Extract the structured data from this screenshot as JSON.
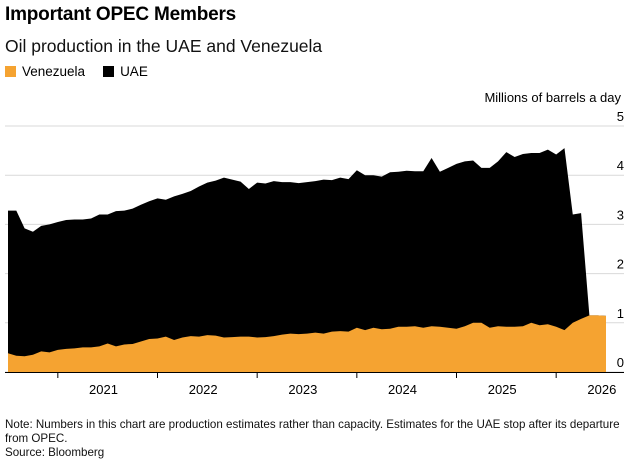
{
  "header": {
    "title": "Important OPEC Members",
    "subtitle": "Oil production in the UAE and Venezuela"
  },
  "legend": [
    {
      "label": "Venezuela",
      "color": "#f5a331"
    },
    {
      "label": "UAE",
      "color": "#000000"
    }
  ],
  "footer": {
    "note": "Note: Numbers in this chart are production estimates rather than capacity. Estimates for the UAE stop after its departure from OPEC.",
    "source": "Source: Bloomberg"
  },
  "chart_data": {
    "type": "area",
    "stacked": true,
    "ylabel": "Millions of barrels a day",
    "ylim": [
      0,
      5
    ],
    "yticks": [
      0,
      1,
      2,
      3,
      4,
      5
    ],
    "x_tick_labels": [
      "2021",
      "2022",
      "2023",
      "2024",
      "2025",
      "2026"
    ],
    "x_start": "2020-07",
    "grid": true,
    "x": [
      "2020-07",
      "2020-08",
      "2020-09",
      "2020-10",
      "2020-11",
      "2020-12",
      "2021-01",
      "2021-02",
      "2021-03",
      "2021-04",
      "2021-05",
      "2021-06",
      "2021-07",
      "2021-08",
      "2021-09",
      "2021-10",
      "2021-11",
      "2021-12",
      "2022-01",
      "2022-02",
      "2022-03",
      "2022-04",
      "2022-05",
      "2022-06",
      "2022-07",
      "2022-08",
      "2022-09",
      "2022-10",
      "2022-11",
      "2022-12",
      "2023-01",
      "2023-02",
      "2023-03",
      "2023-04",
      "2023-05",
      "2023-06",
      "2023-07",
      "2023-08",
      "2023-09",
      "2023-10",
      "2023-11",
      "2023-12",
      "2024-01",
      "2024-02",
      "2024-03",
      "2024-04",
      "2024-05",
      "2024-06",
      "2024-07",
      "2024-08",
      "2024-09",
      "2024-10",
      "2024-11",
      "2024-12",
      "2025-01",
      "2025-02",
      "2025-03",
      "2025-04",
      "2025-05",
      "2025-06",
      "2025-07",
      "2025-08",
      "2025-09",
      "2025-10",
      "2025-11",
      "2025-12",
      "2026-01",
      "2026-02",
      "2026-03",
      "2026-04",
      "2026-05",
      "2026-06",
      "2026-07"
    ],
    "series": [
      {
        "name": "Venezuela",
        "color": "#f5a331",
        "values": [
          0.38,
          0.33,
          0.32,
          0.35,
          0.42,
          0.4,
          0.45,
          0.47,
          0.48,
          0.5,
          0.5,
          0.52,
          0.58,
          0.52,
          0.56,
          0.57,
          0.62,
          0.67,
          0.68,
          0.72,
          0.65,
          0.7,
          0.73,
          0.72,
          0.75,
          0.74,
          0.7,
          0.71,
          0.72,
          0.72,
          0.7,
          0.71,
          0.73,
          0.76,
          0.78,
          0.77,
          0.78,
          0.8,
          0.78,
          0.82,
          0.83,
          0.82,
          0.9,
          0.85,
          0.9,
          0.87,
          0.88,
          0.92,
          0.92,
          0.93,
          0.9,
          0.93,
          0.92,
          0.9,
          0.88,
          0.93,
          1.0,
          1.0,
          0.9,
          0.93,
          0.92,
          0.92,
          0.93,
          1.0,
          0.95,
          0.97,
          0.92,
          0.85,
          1.0,
          1.08,
          1.15,
          1.15,
          1.14
        ]
      },
      {
        "name": "UAE",
        "color": "#000000",
        "values": [
          2.9,
          2.95,
          2.6,
          2.5,
          2.55,
          2.6,
          2.6,
          2.62,
          2.62,
          2.6,
          2.62,
          2.68,
          2.62,
          2.75,
          2.72,
          2.75,
          2.78,
          2.8,
          2.85,
          2.78,
          2.92,
          2.92,
          2.95,
          3.05,
          3.1,
          3.15,
          3.25,
          3.2,
          3.15,
          3.0,
          3.15,
          3.12,
          3.15,
          3.1,
          3.08,
          3.07,
          3.08,
          3.08,
          3.13,
          3.08,
          3.12,
          3.1,
          3.2,
          3.15,
          3.1,
          3.1,
          3.18,
          3.15,
          3.17,
          3.15,
          3.18,
          3.42,
          3.15,
          3.25,
          3.35,
          3.35,
          3.3,
          3.15,
          3.25,
          3.35,
          3.55,
          3.45,
          3.5,
          3.45,
          3.5,
          3.55,
          3.5,
          3.7,
          2.2,
          2.15,
          0,
          0,
          0
        ]
      }
    ]
  }
}
